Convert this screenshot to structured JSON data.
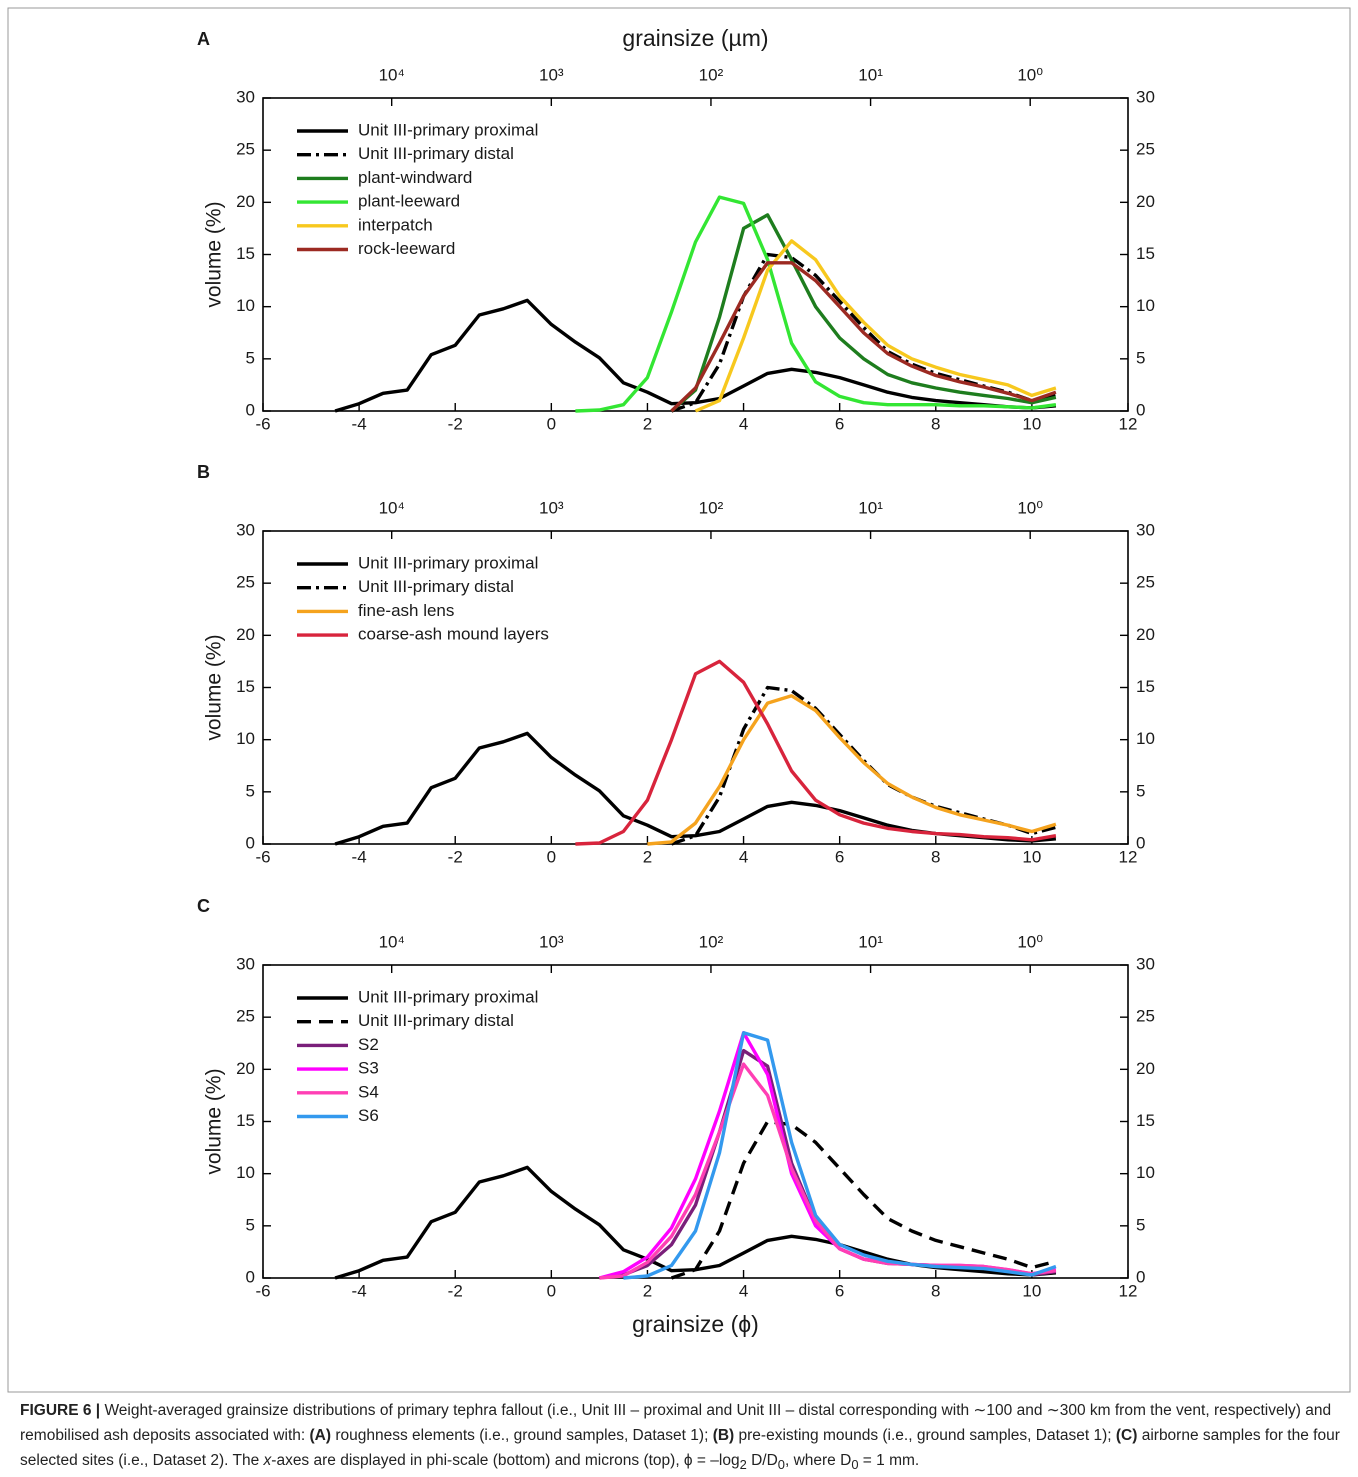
{
  "chart_data": [
    {
      "type": "line",
      "panel_label": "A",
      "x2label": "grainsize (µm)",
      "ylabel": "volume (%)",
      "x": [
        -4.5,
        -4,
        -3.5,
        -3,
        -2.5,
        -2,
        -1.5,
        -1,
        -0.5,
        0,
        0.5,
        1,
        1.5,
        2,
        2.5,
        3,
        3.5,
        4,
        4.5,
        5,
        5.5,
        6,
        6.5,
        7,
        7.5,
        8,
        8.5,
        9,
        9.5,
        10,
        10.5
      ],
      "xlim": [
        -6,
        12
      ],
      "xticks": [
        -6,
        -4,
        -2,
        0,
        2,
        4,
        6,
        8,
        10,
        12
      ],
      "x2lim": [
        64000,
        0.244
      ],
      "x2scale": "log",
      "x2ticks": [
        {
          "value": 10000,
          "label": "10⁴"
        },
        {
          "value": 1000,
          "label": "10³"
        },
        {
          "value": 100,
          "label": "10²"
        },
        {
          "value": 10,
          "label": "10¹"
        },
        {
          "value": 1,
          "label": "10⁰"
        }
      ],
      "ylim": [
        0,
        30
      ],
      "yticks": [
        0,
        5,
        10,
        15,
        20,
        25,
        30
      ],
      "right_axis_mirror": true,
      "legend": "upper left",
      "series": [
        {
          "name": "Unit III-primary proximal",
          "color": "#000000",
          "dash": "solid",
          "values": [
            0,
            0.7,
            1.7,
            2,
            5.4,
            6.3,
            9.2,
            9.8,
            10.6,
            8.3,
            6.6,
            5.1,
            2.7,
            1.8,
            0.7,
            0.8,
            1.2,
            2.4,
            3.6,
            4.0,
            3.7,
            3.2,
            2.5,
            1.8,
            1.3,
            1.0,
            0.8,
            0.6,
            0.4,
            0.3,
            0.5
          ]
        },
        {
          "name": "Unit III-primary distal",
          "color": "#000000",
          "dash": "dash-dot",
          "values": [
            null,
            null,
            null,
            null,
            null,
            null,
            null,
            null,
            null,
            null,
            null,
            null,
            null,
            null,
            0,
            0.8,
            4.5,
            11,
            15,
            14.7,
            13,
            10.5,
            8,
            5.7,
            4.5,
            3.6,
            3,
            2.4,
            1.8,
            1,
            1.6
          ]
        },
        {
          "name": "plant-windward",
          "color": "#1e7d1e",
          "dash": "solid",
          "values": [
            null,
            null,
            null,
            null,
            null,
            null,
            null,
            null,
            null,
            null,
            null,
            null,
            null,
            null,
            0,
            2,
            9,
            17.5,
            18.8,
            14.5,
            10,
            7,
            5,
            3.5,
            2.7,
            2.2,
            1.8,
            1.5,
            1.2,
            0.8,
            1.3
          ]
        },
        {
          "name": "plant-leeward",
          "color": "#33e633",
          "dash": "solid",
          "values": [
            null,
            null,
            null,
            null,
            null,
            null,
            null,
            null,
            null,
            null,
            0,
            0.1,
            0.6,
            3.2,
            9.5,
            16.2,
            20.5,
            19.9,
            14.5,
            6.5,
            2.8,
            1.4,
            0.8,
            0.6,
            0.6,
            0.6,
            0.5,
            0.5,
            0.4,
            0.3,
            0.6
          ]
        },
        {
          "name": "interpatch",
          "color": "#f7c81e",
          "dash": "solid",
          "values": [
            null,
            null,
            null,
            null,
            null,
            null,
            null,
            null,
            null,
            null,
            null,
            null,
            null,
            null,
            null,
            0,
            1,
            7,
            13.5,
            16.3,
            14.5,
            11,
            8.5,
            6.3,
            5,
            4.2,
            3.5,
            3,
            2.5,
            1.5,
            2.2
          ]
        },
        {
          "name": "rock-leeward",
          "color": "#9c2a22",
          "dash": "solid",
          "values": [
            null,
            null,
            null,
            null,
            null,
            null,
            null,
            null,
            null,
            null,
            null,
            null,
            null,
            null,
            0,
            2.2,
            6.5,
            11,
            14.2,
            14.2,
            12.5,
            10,
            7.5,
            5.5,
            4.3,
            3.4,
            2.8,
            2.3,
            1.7,
            1,
            1.8
          ]
        }
      ]
    },
    {
      "type": "line",
      "panel_label": "B",
      "ylabel": "volume (%)",
      "x": [
        -4.5,
        -4,
        -3.5,
        -3,
        -2.5,
        -2,
        -1.5,
        -1,
        -0.5,
        0,
        0.5,
        1,
        1.5,
        2,
        2.5,
        3,
        3.5,
        4,
        4.5,
        5,
        5.5,
        6,
        6.5,
        7,
        7.5,
        8,
        8.5,
        9,
        9.5,
        10,
        10.5
      ],
      "xlim": [
        -6,
        12
      ],
      "xticks": [
        -6,
        -4,
        -2,
        0,
        2,
        4,
        6,
        8,
        10,
        12
      ],
      "x2lim": [
        64000,
        0.244
      ],
      "x2scale": "log",
      "x2ticks": [
        {
          "value": 10000,
          "label": "10⁴"
        },
        {
          "value": 1000,
          "label": "10³"
        },
        {
          "value": 100,
          "label": "10²"
        },
        {
          "value": 10,
          "label": "10¹"
        },
        {
          "value": 1,
          "label": "10⁰"
        }
      ],
      "ylim": [
        0,
        30
      ],
      "yticks": [
        0,
        5,
        10,
        15,
        20,
        25,
        30
      ],
      "right_axis_mirror": true,
      "legend": "upper left",
      "series": [
        {
          "name": "Unit III-primary proximal",
          "color": "#000000",
          "dash": "solid",
          "values": [
            0,
            0.7,
            1.7,
            2,
            5.4,
            6.3,
            9.2,
            9.8,
            10.6,
            8.3,
            6.6,
            5.1,
            2.7,
            1.8,
            0.7,
            0.8,
            1.2,
            2.4,
            3.6,
            4.0,
            3.7,
            3.2,
            2.5,
            1.8,
            1.3,
            1.0,
            0.8,
            0.6,
            0.4,
            0.3,
            0.5
          ]
        },
        {
          "name": "Unit III-primary distal",
          "color": "#000000",
          "dash": "dash-dot",
          "values": [
            null,
            null,
            null,
            null,
            null,
            null,
            null,
            null,
            null,
            null,
            null,
            null,
            null,
            null,
            0,
            0.8,
            4.5,
            11,
            15,
            14.7,
            13,
            10.5,
            8,
            5.7,
            4.5,
            3.6,
            3,
            2.4,
            1.8,
            1,
            1.6
          ]
        },
        {
          "name": "fine-ash lens",
          "color": "#f5a31e",
          "dash": "solid",
          "values": [
            null,
            null,
            null,
            null,
            null,
            null,
            null,
            null,
            null,
            null,
            null,
            null,
            null,
            0,
            0.2,
            2,
            5.5,
            10,
            13.5,
            14.2,
            12.8,
            10.2,
            7.8,
            5.8,
            4.5,
            3.5,
            2.8,
            2.3,
            1.8,
            1.2,
            1.9
          ]
        },
        {
          "name": "coarse-ash mound layers",
          "color": "#d8243c",
          "dash": "solid",
          "values": [
            null,
            null,
            null,
            null,
            null,
            null,
            null,
            null,
            null,
            null,
            0,
            0.1,
            1.2,
            4.2,
            10,
            16.3,
            17.5,
            15.5,
            11.5,
            7,
            4.2,
            2.8,
            2,
            1.5,
            1.2,
            1,
            0.9,
            0.7,
            0.6,
            0.4,
            0.8
          ]
        }
      ]
    },
    {
      "type": "line",
      "panel_label": "C",
      "xlabel": "grainsize (ϕ)",
      "ylabel": "volume (%)",
      "x": [
        -4.5,
        -4,
        -3.5,
        -3,
        -2.5,
        -2,
        -1.5,
        -1,
        -0.5,
        0,
        0.5,
        1,
        1.5,
        2,
        2.5,
        3,
        3.5,
        4,
        4.5,
        5,
        5.5,
        6,
        6.5,
        7,
        7.5,
        8,
        8.5,
        9,
        9.5,
        10,
        10.5
      ],
      "xlim": [
        -6,
        12
      ],
      "xticks": [
        -6,
        -4,
        -2,
        0,
        2,
        4,
        6,
        8,
        10,
        12
      ],
      "x2lim": [
        64000,
        0.244
      ],
      "x2scale": "log",
      "x2ticks": [
        {
          "value": 10000,
          "label": "10⁴"
        },
        {
          "value": 1000,
          "label": "10³"
        },
        {
          "value": 100,
          "label": "10²"
        },
        {
          "value": 10,
          "label": "10¹"
        },
        {
          "value": 1,
          "label": "10⁰"
        }
      ],
      "ylim": [
        0,
        30
      ],
      "yticks": [
        0,
        5,
        10,
        15,
        20,
        25,
        30
      ],
      "right_axis_mirror": true,
      "legend": "upper left",
      "series": [
        {
          "name": "Unit III-primary proximal",
          "color": "#000000",
          "dash": "solid",
          "values": [
            0,
            0.7,
            1.7,
            2,
            5.4,
            6.3,
            9.2,
            9.8,
            10.6,
            8.3,
            6.6,
            5.1,
            2.7,
            1.8,
            0.7,
            0.8,
            1.2,
            2.4,
            3.6,
            4.0,
            3.7,
            3.2,
            2.5,
            1.8,
            1.3,
            1.0,
            0.8,
            0.6,
            0.4,
            0.3,
            0.5
          ]
        },
        {
          "name": "Unit III-primary distal",
          "color": "#000000",
          "dash": "dashed",
          "values": [
            null,
            null,
            null,
            null,
            null,
            null,
            null,
            null,
            null,
            null,
            null,
            null,
            null,
            null,
            0,
            0.8,
            4.5,
            11,
            15,
            14.7,
            13,
            10.5,
            8,
            5.7,
            4.5,
            3.6,
            3,
            2.4,
            1.8,
            1,
            1.6
          ]
        },
        {
          "name": "S2",
          "color": "#7a1f7a",
          "dash": "solid",
          "values": [
            null,
            null,
            null,
            null,
            null,
            null,
            null,
            null,
            null,
            null,
            null,
            0,
            0.3,
            1.2,
            3.2,
            7,
            14,
            21.8,
            20.3,
            11,
            5.5,
            2.8,
            1.8,
            1.4,
            1.3,
            1.2,
            1.1,
            1,
            0.7,
            0.3,
            0.6
          ]
        },
        {
          "name": "S3",
          "color": "#ff00ff",
          "dash": "solid",
          "values": [
            null,
            null,
            null,
            null,
            null,
            null,
            null,
            null,
            null,
            null,
            null,
            0,
            0.6,
            2,
            4.8,
            9.5,
            16,
            23.5,
            19.5,
            10,
            5,
            2.8,
            1.8,
            1.5,
            1.3,
            1.2,
            1.2,
            1.1,
            0.8,
            0.4,
            0.8
          ]
        },
        {
          "name": "S4",
          "color": "#ff3fb4",
          "dash": "solid",
          "values": [
            null,
            null,
            null,
            null,
            null,
            null,
            null,
            null,
            null,
            null,
            null,
            0,
            0.2,
            1.5,
            4,
            8,
            14,
            20.5,
            17.5,
            10.5,
            5.5,
            2.8,
            1.8,
            1.4,
            1.3,
            1.2,
            1.2,
            1.1,
            0.8,
            0.4,
            0.7
          ]
        },
        {
          "name": "S6",
          "color": "#3399ee",
          "dash": "solid",
          "values": [
            null,
            null,
            null,
            null,
            null,
            null,
            null,
            null,
            null,
            null,
            null,
            null,
            0,
            0.2,
            1.2,
            4.5,
            12,
            23.5,
            22.8,
            13,
            6,
            3.2,
            2.2,
            1.6,
            1.3,
            1.1,
            1,
            0.9,
            0.6,
            0.3,
            1.1
          ]
        }
      ]
    }
  ],
  "caption": {
    "segments": [
      "FIGURE 6 |",
      " Weight-averaged grainsize distributions of primary tephra fallout (i.e., Unit III – proximal and Unit III – distal corresponding with ∼100 and ∼300 km from the vent, respectively) and remobilised ash deposits associated with: ",
      "(A)",
      " roughness elements (i.e., ground samples, Dataset 1); ",
      "(B)",
      " pre-existing mounds (i.e., ground samples, Dataset 1); ",
      "(C)",
      " airborne samples for the four selected sites (i.e., Dataset 2). The ",
      "x",
      "-axes are displayed in phi-scale (bottom) and microns (top), ϕ = –log",
      "2",
      " D/D",
      "0",
      ", where D",
      "0",
      " = 1 mm."
    ]
  }
}
